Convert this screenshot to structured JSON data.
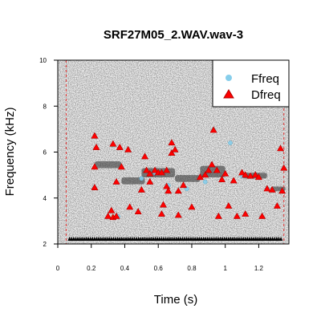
{
  "chart_data": {
    "type": "scatter",
    "title": "SRF27M05_2.WAV.wav-3",
    "xlabel": "Time (s)",
    "ylabel": "Frequency (kHz)",
    "xlim": [
      0,
      1.38
    ],
    "ylim": [
      2,
      10
    ],
    "x_ticks": [
      0,
      0.2,
      0.4,
      0.6,
      0.8,
      1,
      1.2
    ],
    "x_tick_labels": [
      "0",
      "0.2",
      "0.4",
      "0.6",
      "0.8",
      "1",
      "1.2"
    ],
    "y_ticks": [
      2,
      4,
      6,
      8,
      10
    ],
    "y_tick_labels": [
      "2",
      "4",
      "6",
      "8",
      "10"
    ],
    "grid": false,
    "legend_position": "top-right",
    "background": "spectrogram",
    "selection_bounds_s": [
      0.05,
      1.35
    ],
    "colors": {
      "ffreq": "#87ceeb",
      "dfreq": "#ff0000",
      "dfreq_edge": "#b00000",
      "selection_line": "#e03030"
    },
    "series": [
      {
        "name": "Ffreq",
        "marker": "circle",
        "points": [
          [
            0.33,
            6.3
          ],
          [
            0.22,
            4.45
          ],
          [
            0.36,
            3.2
          ],
          [
            0.93,
            6.98
          ],
          [
            0.66,
            4.55
          ],
          [
            0.77,
            4.4
          ],
          [
            0.88,
            4.7
          ],
          [
            1.03,
            6.4
          ],
          [
            1.1,
            4.95
          ],
          [
            1.25,
            4.4
          ],
          [
            0.5,
            4.85
          ],
          [
            0.58,
            5.1
          ]
        ]
      },
      {
        "name": "Dfreq",
        "marker": "triangle",
        "points": [
          [
            0.22,
            6.7
          ],
          [
            0.23,
            6.2
          ],
          [
            0.22,
            5.35
          ],
          [
            0.22,
            4.45
          ],
          [
            0.3,
            3.2
          ],
          [
            0.32,
            3.45
          ],
          [
            0.33,
            3.15
          ],
          [
            0.35,
            3.2
          ],
          [
            0.33,
            6.35
          ],
          [
            0.35,
            4.7
          ],
          [
            0.38,
            5.35
          ],
          [
            0.42,
            6.1
          ],
          [
            0.43,
            3.6
          ],
          [
            0.48,
            3.4
          ],
          [
            0.5,
            4.35
          ],
          [
            0.52,
            5.8
          ],
          [
            0.53,
            5.2
          ],
          [
            0.55,
            4.7
          ],
          [
            0.55,
            5.05
          ],
          [
            0.58,
            5.2
          ],
          [
            0.6,
            5.1
          ],
          [
            0.62,
            5.1
          ],
          [
            0.65,
            5.2
          ],
          [
            0.63,
            3.7
          ],
          [
            0.65,
            4.5
          ],
          [
            0.66,
            4.3
          ],
          [
            0.68,
            6.4
          ],
          [
            0.68,
            5.95
          ],
          [
            0.7,
            6.1
          ],
          [
            0.72,
            3.25
          ],
          [
            0.72,
            4.3
          ],
          [
            0.75,
            4.55
          ],
          [
            0.8,
            3.6
          ],
          [
            0.85,
            4.9
          ],
          [
            0.88,
            5.0
          ],
          [
            0.9,
            5.2
          ],
          [
            0.92,
            5.45
          ],
          [
            0.93,
            6.95
          ],
          [
            0.95,
            5.2
          ],
          [
            0.96,
            3.2
          ],
          [
            0.98,
            4.8
          ],
          [
            1.0,
            5.05
          ],
          [
            1.02,
            3.65
          ],
          [
            1.05,
            4.75
          ],
          [
            1.07,
            3.2
          ],
          [
            1.1,
            5.1
          ],
          [
            1.12,
            5.0
          ],
          [
            1.15,
            4.95
          ],
          [
            1.18,
            5.0
          ],
          [
            1.2,
            4.9
          ],
          [
            1.22,
            3.2
          ],
          [
            1.25,
            4.4
          ],
          [
            1.28,
            4.35
          ],
          [
            1.31,
            3.65
          ],
          [
            1.33,
            6.15
          ],
          [
            1.34,
            4.3
          ],
          [
            1.35,
            5.3
          ],
          [
            0.37,
            6.2
          ],
          [
            0.62,
            3.3
          ],
          [
            1.12,
            3.3
          ]
        ]
      },
      {
        "name": "",
        "marker": "small-triangle",
        "color": "#000000",
        "points": []
      }
    ]
  }
}
